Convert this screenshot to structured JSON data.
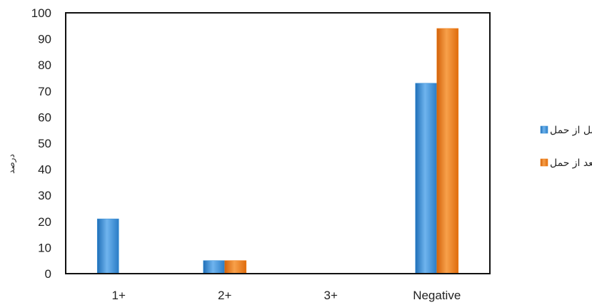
{
  "chart_data": {
    "type": "bar",
    "title": "",
    "xlabel": "",
    "ylabel": "درصد",
    "ylim": [
      0,
      100
    ],
    "yticks": [
      0,
      10,
      20,
      30,
      40,
      50,
      60,
      70,
      80,
      90,
      100
    ],
    "categories": [
      "1+",
      "2+",
      "3+",
      "Negative"
    ],
    "series": [
      {
        "name": "قبل از حمل",
        "values": [
          21,
          5,
          0,
          73
        ],
        "color": "#3a8fd6"
      },
      {
        "name": "بعد از حمل",
        "values": [
          0,
          5,
          0,
          94
        ],
        "color": "#f07d14"
      }
    ],
    "grid": false,
    "legend_position": "right"
  }
}
